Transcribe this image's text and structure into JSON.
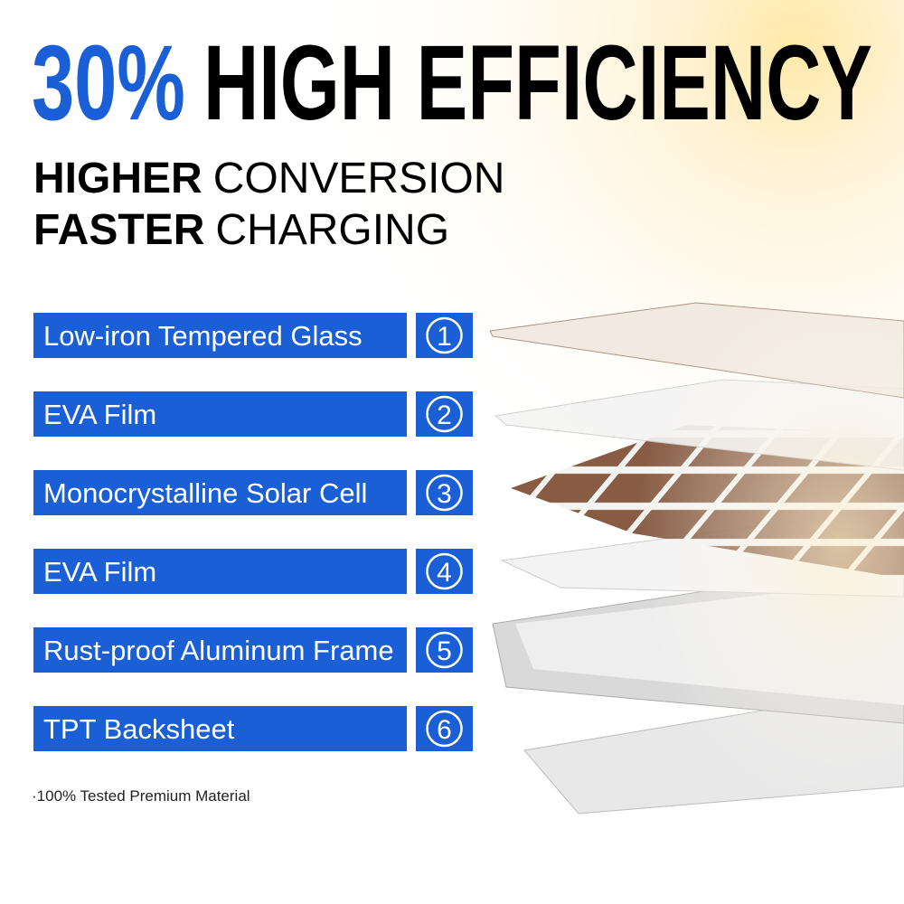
{
  "header": {
    "highlight": "30%",
    "title": "HIGH EFFICIENCY"
  },
  "subtitle": [
    {
      "bold": "HIGHER",
      "rest": "CONVERSION"
    },
    {
      "bold": "FASTER",
      "rest": "CHARGING"
    }
  ],
  "layers": [
    {
      "label": "Low-iron Tempered Glass",
      "number": "1"
    },
    {
      "label": "EVA Film",
      "number": "2"
    },
    {
      "label": "Monocrystalline Solar Cell",
      "number": "3"
    },
    {
      "label": "EVA Film",
      "number": "4"
    },
    {
      "label": "Rust-proof Aluminum Frame",
      "number": "5"
    },
    {
      "label": "TPT Backsheet",
      "number": "6"
    }
  ],
  "footnote": "·100% Tested Premium Material"
}
